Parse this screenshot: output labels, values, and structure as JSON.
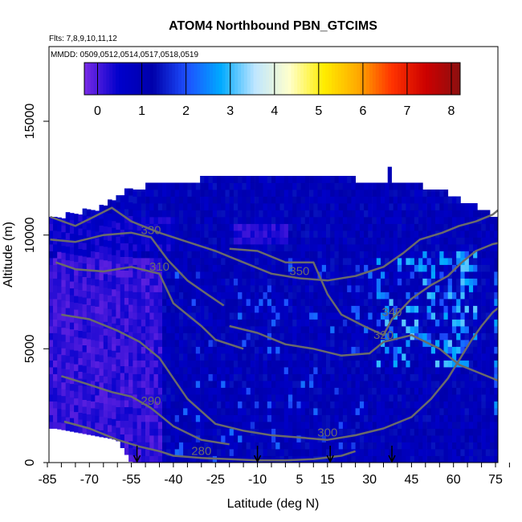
{
  "chart_data": {
    "type": "heatmap",
    "title": "ATOM4 Northbound PBN_GTCIMS",
    "flights_note": "Flts: 7,8,9,10,11,12",
    "dates_note": "MMDD: 0509,0512,0514,0517,0518,0519",
    "xlabel": "Latitude (deg N)",
    "ylabel": "Altitude (m)",
    "xlim": [
      -87,
      85
    ],
    "ylim": [
      0,
      17500
    ],
    "x_ticks": [
      -85,
      -70,
      -55,
      -40,
      -25,
      -10,
      5,
      15,
      30,
      45,
      60,
      75
    ],
    "y_ticks": [
      0,
      5000,
      10000,
      15000
    ],
    "colorbar": {
      "ticks": [
        0,
        1,
        2,
        3,
        4,
        5,
        6,
        7,
        8
      ],
      "range": [
        -0.3,
        8.2
      ],
      "colors": [
        "#7a2ae6",
        "#0000cc",
        "#0000aa",
        "#1e4fff",
        "#00aaff",
        "#bfe6ff",
        "#ffffcc",
        "#ffee00",
        "#ffaa00",
        "#ff3300",
        "#cc0000",
        "#8b1010"
      ]
    },
    "data_extent": {
      "top_profile_lat": [
        -86,
        -80,
        -68,
        -62,
        -55,
        -45,
        -35,
        -25,
        -10,
        0,
        10,
        25,
        38,
        45,
        52,
        60,
        66,
        72,
        76,
        82
      ],
      "top_profile_alt": [
        10500,
        10700,
        11000,
        11400,
        11900,
        12100,
        12200,
        12400,
        12600,
        12600,
        12400,
        12300,
        12300,
        12100,
        11900,
        11600,
        11200,
        10900,
        10500,
        9400
      ],
      "bottom_profile_lat": [
        -82,
        -60,
        -55,
        82
      ],
      "bottom_profile_alt": [
        1500,
        1000,
        0,
        0
      ]
    },
    "potential_temperature_contours": [
      {
        "label": "280",
        "lat": [
          -79,
          -70,
          -60,
          -52,
          -45,
          -40,
          -30,
          -20,
          -10,
          0,
          10,
          20,
          25
        ],
        "alt": [
          1800,
          1500,
          1000,
          700,
          500,
          300,
          200,
          150,
          100,
          100,
          150,
          300,
          500
        ]
      },
      {
        "label": "290",
        "lat": [
          -80,
          -72,
          -62,
          -55,
          -48,
          -40,
          -30,
          -20
        ],
        "alt": [
          3800,
          3500,
          3100,
          2900,
          2400,
          1600,
          1000,
          800
        ]
      },
      {
        "label": "300",
        "lat": [
          -80,
          -70,
          -60,
          -52,
          -45,
          -40,
          -35,
          -25,
          -15,
          -5,
          5,
          15,
          25,
          35,
          45,
          52,
          58,
          62,
          66,
          70,
          74,
          78,
          82
        ],
        "alt": [
          6500,
          6300,
          5800,
          5300,
          4600,
          3700,
          2800,
          1700,
          1400,
          1200,
          1100,
          1000,
          1200,
          1500,
          2000,
          2800,
          3700,
          4500,
          5300,
          6000,
          6600,
          7000,
          7300
        ]
      },
      {
        "label": "310",
        "lat": [
          -82,
          -75,
          -65,
          -55,
          -45,
          -40,
          -30,
          -25,
          -15
        ],
        "alt": [
          8800,
          8500,
          8400,
          8600,
          8300,
          7000,
          6000,
          5400,
          5000
        ]
      },
      {
        "label": "320",
        "lat": [
          -20,
          -10,
          0,
          10,
          20,
          30,
          35,
          45,
          55,
          62,
          70,
          78,
          82
        ],
        "alt": [
          6000,
          5700,
          5200,
          5000,
          4700,
          4800,
          5300,
          5600,
          5000,
          4300,
          3900,
          3500,
          3400
        ]
      },
      {
        "label": "330",
        "lat": [
          -84,
          -75,
          -65,
          -55,
          -48,
          -42,
          -35,
          -28,
          -22
        ],
        "alt": [
          9800,
          9700,
          10000,
          10100,
          9900,
          8900,
          8000,
          7400,
          6900
        ]
      },
      {
        "label": "340",
        "lat": [
          -20,
          -10,
          0,
          10,
          15,
          20,
          28,
          35,
          38,
          45,
          52,
          58,
          63,
          68,
          74,
          82
        ],
        "alt": [
          9400,
          9300,
          8800,
          8800,
          7400,
          6500,
          6000,
          5600,
          6300,
          7200,
          7800,
          8200,
          8800,
          9300,
          9600,
          9800
        ]
      },
      {
        "label": "350",
        "lat": [
          -84,
          -75,
          -70,
          -62,
          -55,
          -45,
          -35,
          -25,
          -15,
          -5,
          5,
          15,
          25,
          35,
          42,
          48,
          56,
          62,
          68,
          74,
          78
        ],
        "alt": [
          10800,
          10400,
          10700,
          11200,
          10600,
          10100,
          9700,
          9300,
          8800,
          8300,
          8100,
          8000,
          8200,
          8600,
          9200,
          9800,
          10100,
          10400,
          10600,
          10900,
          11300
        ]
      }
    ],
    "tropopause_markers_lat": [
      -53,
      -10,
      16,
      38
    ]
  }
}
